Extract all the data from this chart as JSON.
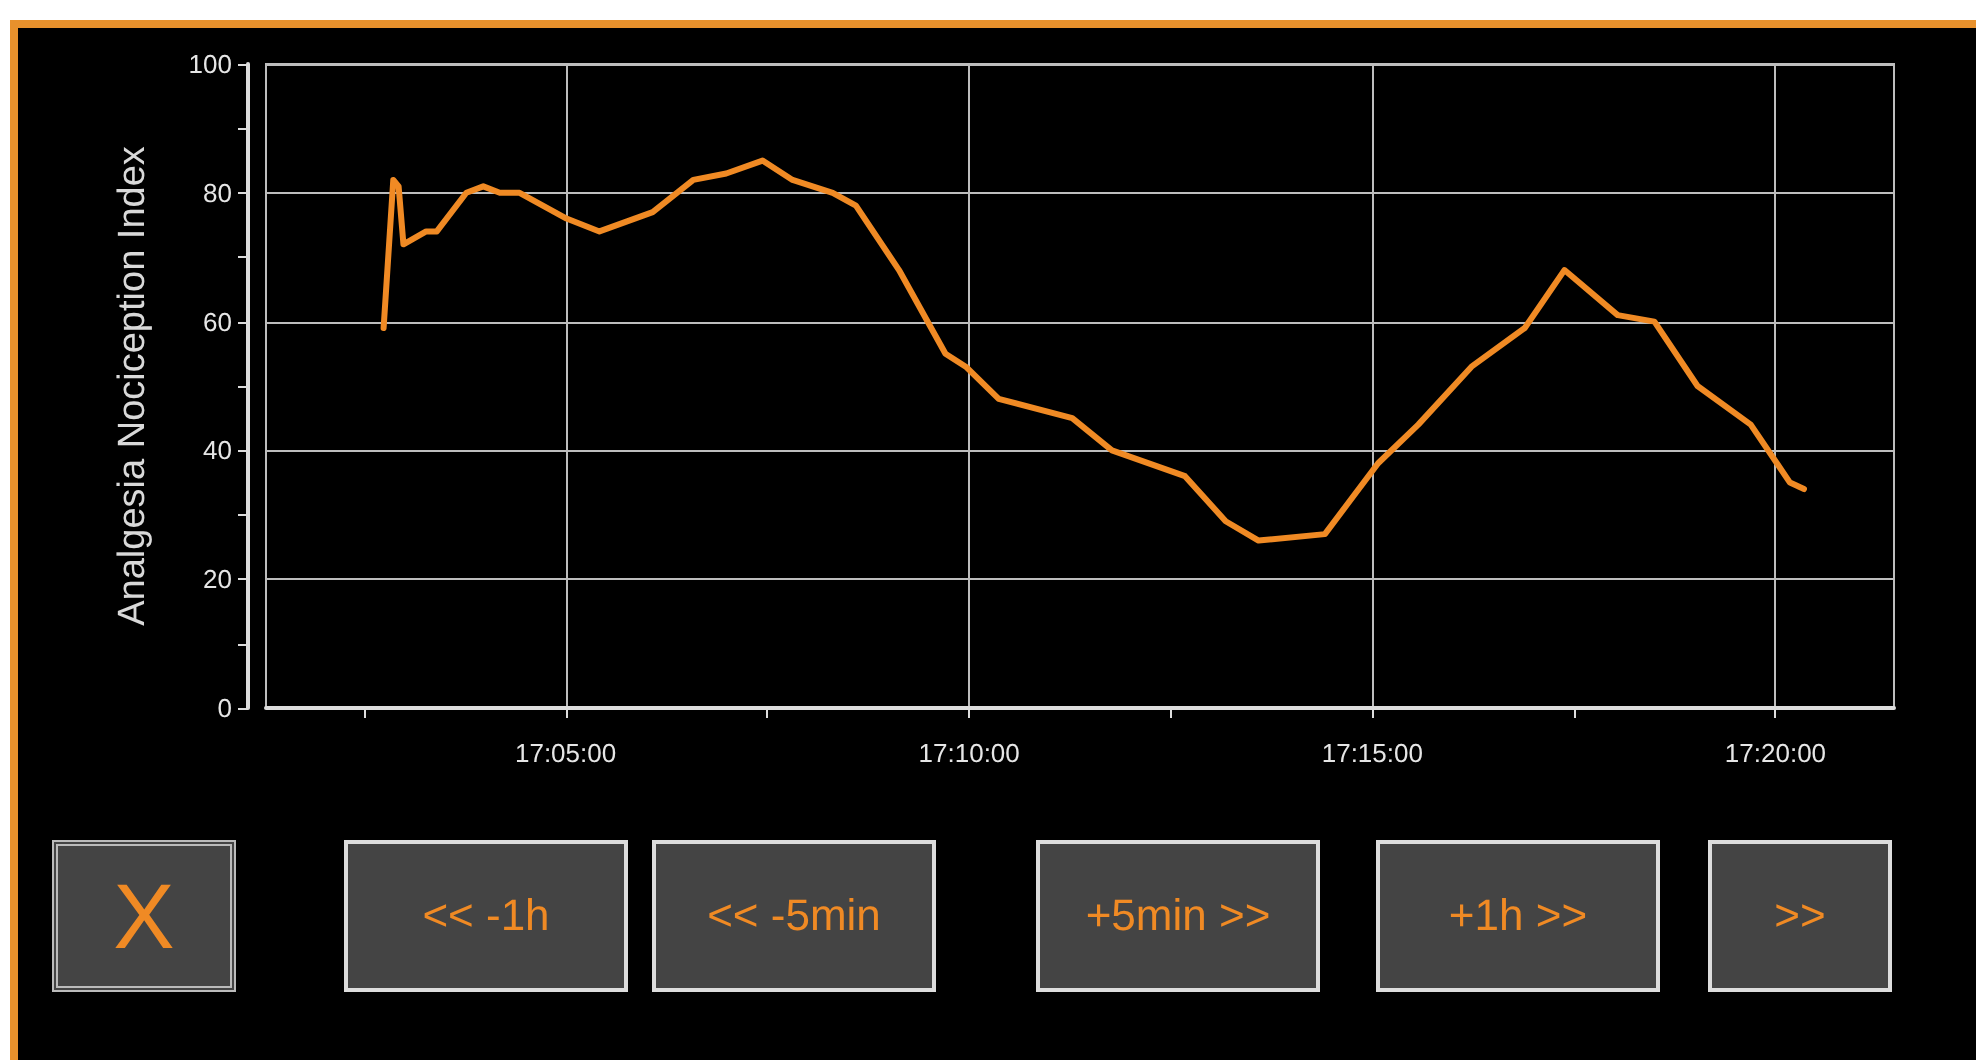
{
  "chart_data": {
    "type": "line",
    "ylabel": "Analgesia Nociception Index",
    "x": [
      17.0457,
      17.0477,
      17.0488,
      17.0498,
      17.0545,
      17.0567,
      17.0628,
      17.0663,
      17.0697,
      17.0738,
      17.0835,
      17.0903,
      17.1013,
      17.1097,
      17.1165,
      17.124,
      17.1302,
      17.1385,
      17.1433,
      17.1522,
      17.1618,
      17.166,
      17.1728,
      17.188,
      17.1962,
      17.2113,
      17.2197,
      17.2265,
      17.2402,
      17.2512,
      17.2595,
      17.2705,
      17.2815,
      17.2897,
      17.3007,
      17.3083,
      17.3172,
      17.3282,
      17.3363,
      17.3392
    ],
    "series": [
      {
        "color": "#f08a24",
        "values": [
          59,
          82,
          81,
          72,
          74,
          74,
          80,
          81,
          80,
          80,
          76,
          74,
          77,
          82,
          83,
          85,
          82,
          80,
          78,
          68,
          55,
          53,
          48,
          45,
          40,
          36,
          29,
          26,
          27,
          38,
          44,
          53,
          59,
          68,
          61,
          60,
          50,
          44,
          35,
          34
        ]
      }
    ],
    "xlim": [
      17.0214,
      17.3578
    ],
    "xticks": [
      {
        "value": 17.0417,
        "label": null
      },
      {
        "value": 17.0833,
        "label": "17:05:00"
      },
      {
        "value": 17.125,
        "label": null
      },
      {
        "value": 17.1667,
        "label": "17:10:00"
      },
      {
        "value": 17.2083,
        "label": null
      },
      {
        "value": 17.25,
        "label": "17:15:00"
      },
      {
        "value": 17.2917,
        "label": null
      },
      {
        "value": 17.3333,
        "label": "17:20:00"
      }
    ],
    "ylim": [
      0,
      100
    ],
    "yticks": [
      0,
      {
        "value": 10,
        "label": null
      },
      20,
      {
        "value": 30,
        "label": null
      },
      40,
      {
        "value": 50,
        "label": null
      },
      60,
      {
        "value": 70,
        "label": null
      },
      80,
      {
        "value": 90,
        "label": null
      },
      100
    ],
    "grid": true,
    "marker": "none",
    "line_style": "solid",
    "annotations": [
      "X",
      "<< -1h",
      "<< -5min",
      "+5min >>",
      "+1h >>",
      ">>"
    ]
  }
}
